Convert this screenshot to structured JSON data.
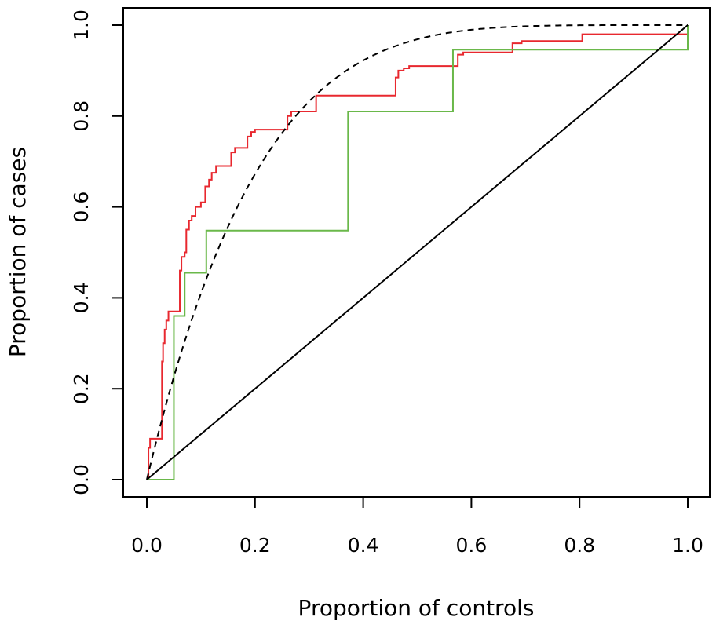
{
  "chart_data": {
    "type": "line",
    "title": "",
    "xlabel": "Proportion of controls",
    "ylabel": "Proportion of cases",
    "xlim": [
      0,
      1
    ],
    "ylim": [
      0,
      1
    ],
    "xticks": [
      0.0,
      0.2,
      0.4,
      0.6,
      0.8,
      1.0
    ],
    "yticks": [
      0.0,
      0.2,
      0.4,
      0.6,
      0.8,
      1.0
    ],
    "xtick_labels": [
      "0.0",
      "0.2",
      "0.4",
      "0.6",
      "0.8",
      "1.0"
    ],
    "ytick_labels": [
      "0.0",
      "0.2",
      "0.4",
      "0.6",
      "0.8",
      "1.0"
    ],
    "grid": false,
    "legend": "none",
    "series": [
      {
        "key": "red-roc",
        "style": "step",
        "color": "#e8282f",
        "points": [
          [
            0.0,
            0.0
          ],
          [
            0.003,
            0.07
          ],
          [
            0.006,
            0.09
          ],
          [
            0.025,
            0.09
          ],
          [
            0.028,
            0.26
          ],
          [
            0.03,
            0.3
          ],
          [
            0.033,
            0.33
          ],
          [
            0.036,
            0.35
          ],
          [
            0.04,
            0.37
          ],
          [
            0.058,
            0.37
          ],
          [
            0.061,
            0.46
          ],
          [
            0.064,
            0.49
          ],
          [
            0.07,
            0.5
          ],
          [
            0.073,
            0.55
          ],
          [
            0.078,
            0.57
          ],
          [
            0.083,
            0.58
          ],
          [
            0.09,
            0.6
          ],
          [
            0.1,
            0.61
          ],
          [
            0.108,
            0.645
          ],
          [
            0.115,
            0.66
          ],
          [
            0.12,
            0.675
          ],
          [
            0.128,
            0.69
          ],
          [
            0.15,
            0.69
          ],
          [
            0.156,
            0.72
          ],
          [
            0.163,
            0.73
          ],
          [
            0.18,
            0.73
          ],
          [
            0.186,
            0.755
          ],
          [
            0.193,
            0.765
          ],
          [
            0.2,
            0.77
          ],
          [
            0.255,
            0.77
          ],
          [
            0.26,
            0.8
          ],
          [
            0.267,
            0.81
          ],
          [
            0.31,
            0.81
          ],
          [
            0.313,
            0.845
          ],
          [
            0.457,
            0.845
          ],
          [
            0.46,
            0.885
          ],
          [
            0.465,
            0.9
          ],
          [
            0.475,
            0.905
          ],
          [
            0.485,
            0.91
          ],
          [
            0.57,
            0.91
          ],
          [
            0.575,
            0.935
          ],
          [
            0.585,
            0.94
          ],
          [
            0.64,
            0.94
          ],
          [
            0.676,
            0.96
          ],
          [
            0.693,
            0.965
          ],
          [
            0.802,
            0.965
          ],
          [
            0.805,
            0.98
          ],
          [
            1.0,
            0.98
          ],
          [
            1.0,
            1.0
          ]
        ]
      },
      {
        "key": "green-roc",
        "style": "step",
        "color": "#6ab84a",
        "points": [
          [
            0.0,
            0.0
          ],
          [
            0.05,
            0.0
          ],
          [
            0.05,
            0.36
          ],
          [
            0.07,
            0.36
          ],
          [
            0.07,
            0.455
          ],
          [
            0.11,
            0.455
          ],
          [
            0.11,
            0.548
          ],
          [
            0.372,
            0.548
          ],
          [
            0.372,
            0.81
          ],
          [
            0.566,
            0.81
          ],
          [
            0.566,
            0.946
          ],
          [
            1.0,
            0.946
          ],
          [
            1.0,
            1.0
          ]
        ]
      },
      {
        "key": "fitted-curve",
        "style": "dashed",
        "color": "#000000",
        "function": "1-(1-x)^5"
      },
      {
        "key": "diagonal",
        "style": "solid",
        "color": "#000000",
        "points": [
          [
            0.0,
            0.0
          ],
          [
            1.0,
            1.0
          ]
        ]
      }
    ]
  }
}
